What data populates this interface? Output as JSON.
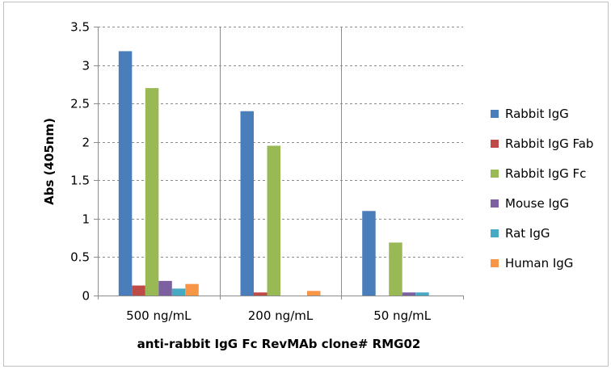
{
  "chart_data": {
    "type": "bar",
    "title": "",
    "xlabel": "anti-rabbit  IgG Fc RevMAb clone# RMG02",
    "ylabel": "Abs (405nm)",
    "ylim": [
      0,
      3.5
    ],
    "yticks": [
      "0",
      "0.5",
      "1",
      "1.5",
      "2",
      "2.5",
      "3",
      "3.5"
    ],
    "ytick_values": [
      0,
      0.5,
      1,
      1.5,
      2,
      2.5,
      3,
      3.5
    ],
    "grid": true,
    "legend_position": "right",
    "categories": [
      "500 ng/mL",
      "200 ng/mL",
      "50 ng/mL"
    ],
    "series": [
      {
        "name": "Rabbit IgG",
        "color": "#4a7ebb",
        "values": [
          3.18,
          2.4,
          1.1
        ]
      },
      {
        "name": "Rabbit IgG Fab",
        "color": "#be4b48",
        "values": [
          0.13,
          0.04,
          0.0
        ]
      },
      {
        "name": "Rabbit IgG Fc",
        "color": "#98b954",
        "values": [
          2.7,
          1.95,
          0.69
        ]
      },
      {
        "name": "Mouse IgG",
        "color": "#7d60a0",
        "values": [
          0.19,
          0.0,
          0.04
        ]
      },
      {
        "name": "Rat IgG",
        "color": "#46aac5",
        "values": [
          0.09,
          0.0,
          0.04
        ]
      },
      {
        "name": "Human IgG",
        "color": "#f79646",
        "values": [
          0.15,
          0.06,
          0.0
        ]
      }
    ]
  }
}
